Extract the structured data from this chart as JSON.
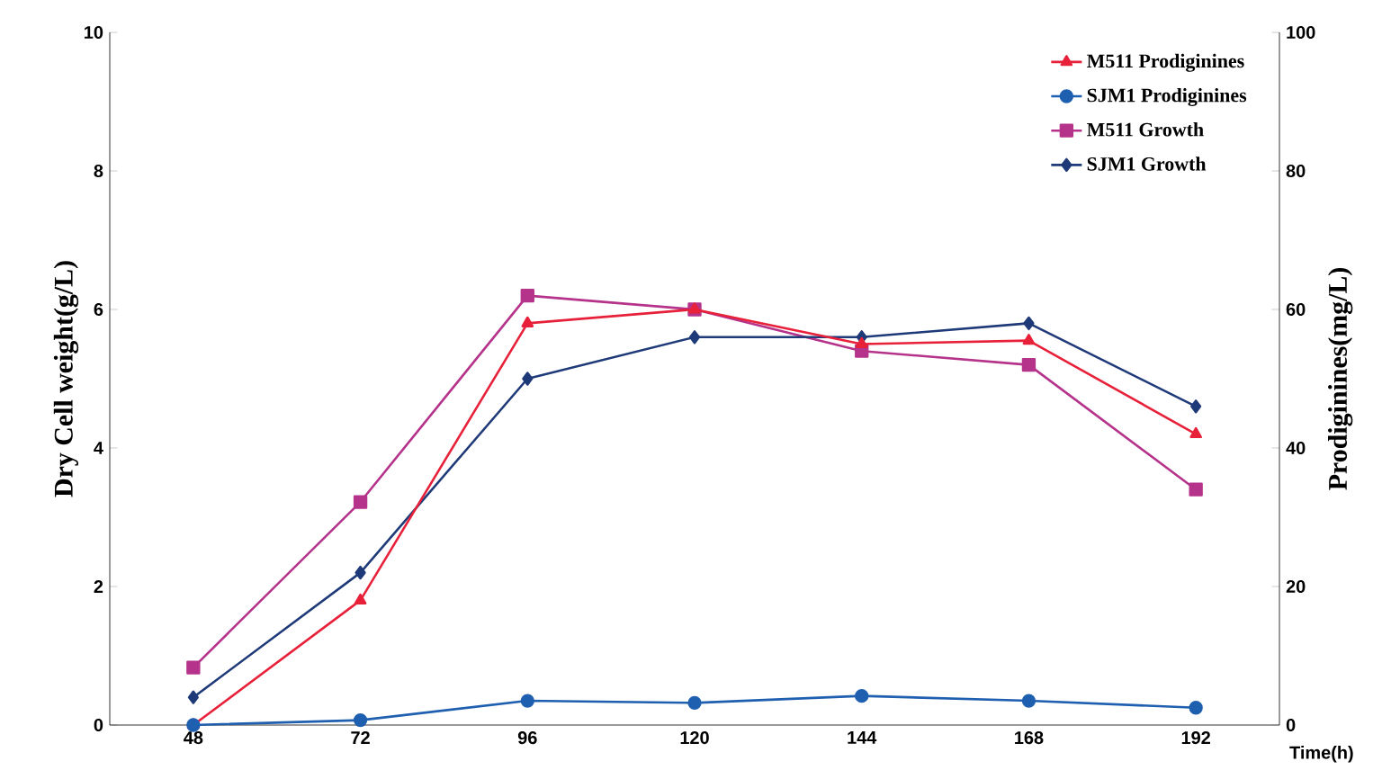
{
  "chart_data": {
    "type": "line",
    "xlabel": "Time(h)",
    "ylabel": "Dry Cell weight(g/L)",
    "y2label": "Prodiginines(mg/L)",
    "categories": [
      "48",
      "72",
      "96",
      "120",
      "144",
      "168",
      "192"
    ],
    "ylim": [
      0,
      10
    ],
    "yticks": [
      0,
      2,
      4,
      6,
      8,
      10
    ],
    "y2lim": [
      0,
      100
    ],
    "y2ticks": [
      0,
      20,
      40,
      60,
      80,
      100
    ],
    "grid": false,
    "legend": "top right",
    "series": [
      {
        "name": "M511 Growth",
        "color": "#b5338a",
        "marker": "square",
        "values": [
          0.83,
          3.22,
          6.2,
          6.0,
          5.4,
          5.2,
          3.4
        ]
      },
      {
        "name": "SJM1 Growth",
        "color": "#1f3a78",
        "marker": "diamond",
        "values": [
          0.4,
          2.2,
          5.0,
          5.6,
          5.6,
          5.8,
          4.6
        ]
      },
      {
        "name": "M511 Prodiginines",
        "color": "#e8213a",
        "marker": "triangle",
        "axis": "y2",
        "values": [
          0,
          18,
          58,
          60,
          55,
          55.5,
          42
        ]
      },
      {
        "name": "SJM1 Prodiginines",
        "color": "#1f5fb0",
        "marker": "circle",
        "axis": "y2",
        "values": [
          0,
          0.7,
          3.5,
          3.2,
          4.2,
          3.5,
          2.5
        ]
      }
    ]
  }
}
